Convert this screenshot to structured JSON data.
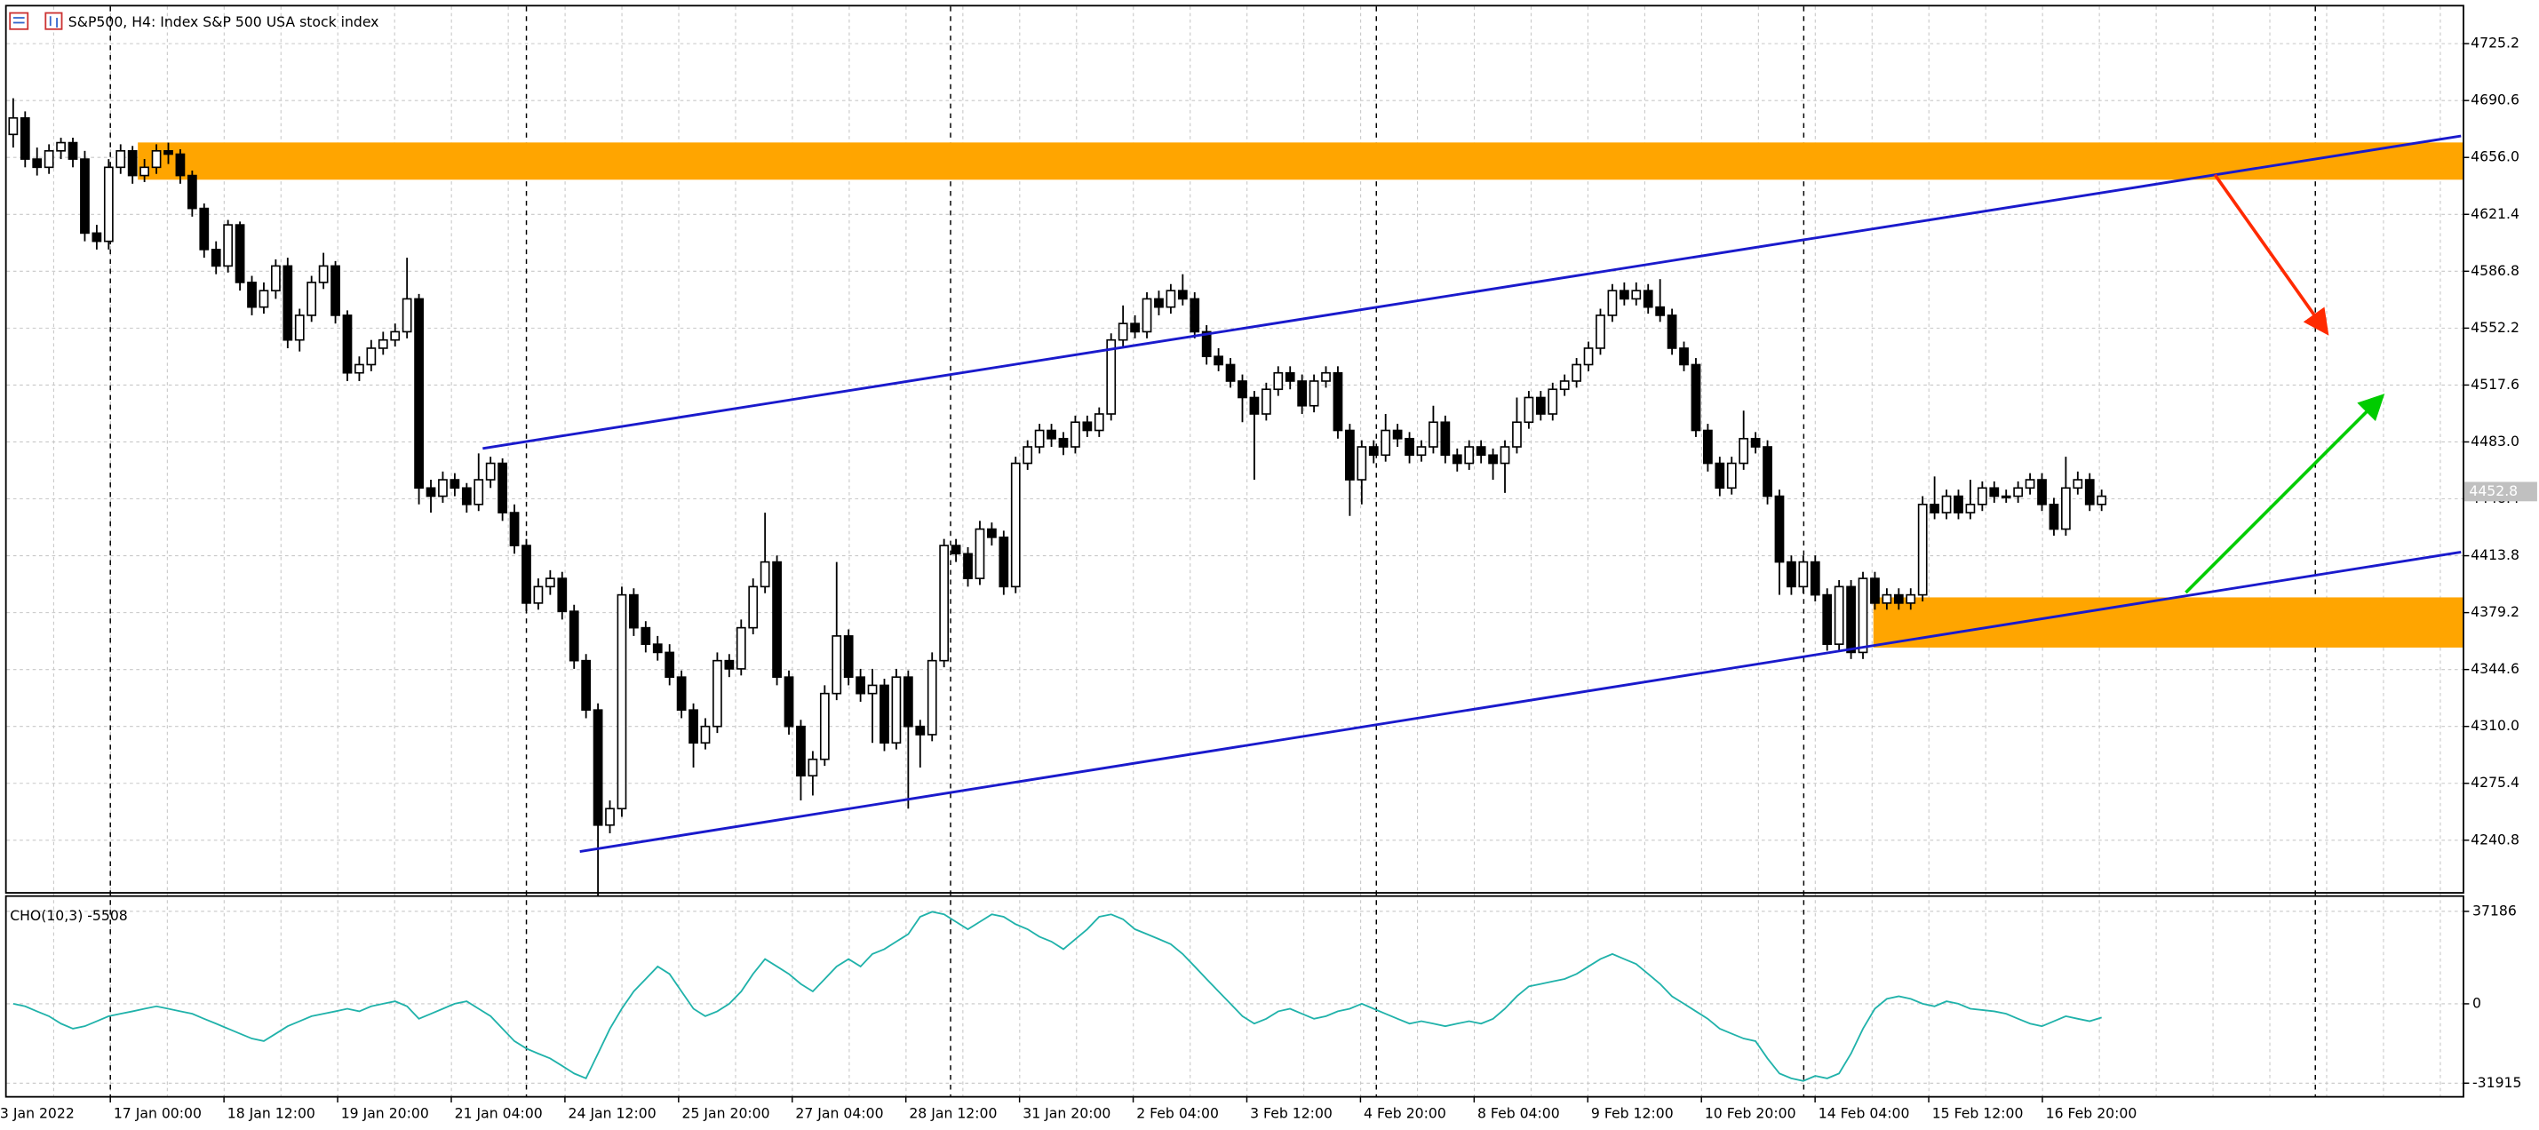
{
  "chart_data": {
    "type": "candlestick",
    "title": "S&P500, H4:  Index S&P 500 USA stock index",
    "ohlc": [
      [
        4670,
        4692,
        4662,
        4680
      ],
      [
        4680,
        4684,
        4650,
        4655
      ],
      [
        4655,
        4662,
        4645,
        4650
      ],
      [
        4650,
        4664,
        4646,
        4660
      ],
      [
        4660,
        4668,
        4655,
        4665
      ],
      [
        4665,
        4668,
        4650,
        4655
      ],
      [
        4655,
        4660,
        4605,
        4610
      ],
      [
        4610,
        4615,
        4600,
        4605
      ],
      [
        4605,
        4655,
        4600,
        4650
      ],
      [
        4650,
        4664,
        4646,
        4660
      ],
      [
        4660,
        4663,
        4640,
        4645
      ],
      [
        4645,
        4655,
        4641,
        4650
      ],
      [
        4650,
        4664,
        4646,
        4660
      ],
      [
        4660,
        4665,
        4652,
        4658
      ],
      [
        4658,
        4661,
        4640,
        4645
      ],
      [
        4645,
        4648,
        4620,
        4625
      ],
      [
        4625,
        4628,
        4595,
        4600
      ],
      [
        4600,
        4605,
        4585,
        4590
      ],
      [
        4590,
        4618,
        4586,
        4615
      ],
      [
        4615,
        4617,
        4575,
        4580
      ],
      [
        4580,
        4584,
        4560,
        4565
      ],
      [
        4565,
        4580,
        4561,
        4575
      ],
      [
        4575,
        4594,
        4570,
        4590
      ],
      [
        4590,
        4595,
        4540,
        4545
      ],
      [
        4545,
        4564,
        4538,
        4560
      ],
      [
        4560,
        4584,
        4556,
        4580
      ],
      [
        4580,
        4598,
        4576,
        4590
      ],
      [
        4590,
        4593,
        4555,
        4560
      ],
      [
        4560,
        4563,
        4520,
        4525
      ],
      [
        4525,
        4535,
        4520,
        4530
      ],
      [
        4530,
        4545,
        4526,
        4540
      ],
      [
        4540,
        4550,
        4536,
        4545
      ],
      [
        4545,
        4555,
        4541,
        4550
      ],
      [
        4550,
        4595,
        4546,
        4570
      ],
      [
        4570,
        4573,
        4445,
        4455
      ],
      [
        4455,
        4460,
        4440,
        4450
      ],
      [
        4450,
        4465,
        4446,
        4460
      ],
      [
        4460,
        4464,
        4450,
        4455
      ],
      [
        4455,
        4458,
        4440,
        4445
      ],
      [
        4445,
        4476,
        4441,
        4460
      ],
      [
        4460,
        4474,
        4455,
        4470
      ],
      [
        4470,
        4473,
        4435,
        4440
      ],
      [
        4440,
        4445,
        4415,
        4420
      ],
      [
        4420,
        4424,
        4380,
        4385
      ],
      [
        4385,
        4400,
        4381,
        4395
      ],
      [
        4395,
        4405,
        4390,
        4400
      ],
      [
        4400,
        4404,
        4375,
        4380
      ],
      [
        4380,
        4384,
        4345,
        4350
      ],
      [
        4350,
        4354,
        4315,
        4320
      ],
      [
        4320,
        4324,
        4207,
        4250
      ],
      [
        4250,
        4265,
        4245,
        4260
      ],
      [
        4260,
        4395,
        4255,
        4390
      ],
      [
        4390,
        4394,
        4365,
        4370
      ],
      [
        4370,
        4374,
        4355,
        4360
      ],
      [
        4360,
        4365,
        4350,
        4355
      ],
      [
        4355,
        4360,
        4335,
        4340
      ],
      [
        4340,
        4344,
        4315,
        4320
      ],
      [
        4320,
        4324,
        4285,
        4300
      ],
      [
        4300,
        4315,
        4296,
        4310
      ],
      [
        4310,
        4355,
        4306,
        4350
      ],
      [
        4350,
        4354,
        4340,
        4345
      ],
      [
        4345,
        4375,
        4341,
        4370
      ],
      [
        4370,
        4400,
        4366,
        4395
      ],
      [
        4395,
        4440,
        4391,
        4410
      ],
      [
        4410,
        4414,
        4335,
        4340
      ],
      [
        4340,
        4344,
        4305,
        4310
      ],
      [
        4310,
        4314,
        4265,
        4280
      ],
      [
        4280,
        4295,
        4268,
        4290
      ],
      [
        4290,
        4335,
        4286,
        4330
      ],
      [
        4330,
        4410,
        4326,
        4365
      ],
      [
        4365,
        4369,
        4335,
        4340
      ],
      [
        4340,
        4345,
        4325,
        4330
      ],
      [
        4330,
        4345,
        4300,
        4335
      ],
      [
        4335,
        4339,
        4295,
        4300
      ],
      [
        4300,
        4345,
        4296,
        4340
      ],
      [
        4340,
        4344,
        4260,
        4310
      ],
      [
        4310,
        4314,
        4285,
        4305
      ],
      [
        4305,
        4355,
        4301,
        4350
      ],
      [
        4350,
        4424,
        4346,
        4420
      ],
      [
        4420,
        4424,
        4410,
        4415
      ],
      [
        4415,
        4419,
        4395,
        4400
      ],
      [
        4400,
        4435,
        4396,
        4430
      ],
      [
        4430,
        4434,
        4420,
        4425
      ],
      [
        4425,
        4429,
        4390,
        4395
      ],
      [
        4395,
        4474,
        4391,
        4470
      ],
      [
        4470,
        4484,
        4466,
        4480
      ],
      [
        4480,
        4494,
        4476,
        4490
      ],
      [
        4490,
        4494,
        4480,
        4485
      ],
      [
        4485,
        4489,
        4475,
        4480
      ],
      [
        4480,
        4499,
        4476,
        4495
      ],
      [
        4495,
        4499,
        4486,
        4490
      ],
      [
        4490,
        4504,
        4486,
        4500
      ],
      [
        4500,
        4549,
        4496,
        4545
      ],
      [
        4545,
        4566,
        4541,
        4555
      ],
      [
        4555,
        4560,
        4546,
        4550
      ],
      [
        4550,
        4574,
        4546,
        4570
      ],
      [
        4570,
        4575,
        4560,
        4565
      ],
      [
        4565,
        4579,
        4561,
        4575
      ],
      [
        4575,
        4585,
        4566,
        4570
      ],
      [
        4570,
        4574,
        4546,
        4550
      ],
      [
        4550,
        4554,
        4530,
        4535
      ],
      [
        4535,
        4540,
        4526,
        4530
      ],
      [
        4530,
        4534,
        4516,
        4520
      ],
      [
        4520,
        4524,
        4495,
        4510
      ],
      [
        4510,
        4514,
        4460,
        4500
      ],
      [
        4500,
        4519,
        4496,
        4515
      ],
      [
        4515,
        4529,
        4511,
        4525
      ],
      [
        4525,
        4529,
        4515,
        4520
      ],
      [
        4520,
        4524,
        4500,
        4505
      ],
      [
        4505,
        4524,
        4501,
        4520
      ],
      [
        4520,
        4529,
        4516,
        4525
      ],
      [
        4525,
        4529,
        4485,
        4490
      ],
      [
        4490,
        4494,
        4438,
        4460
      ],
      [
        4460,
        4484,
        4445,
        4480
      ],
      [
        4480,
        4484,
        4470,
        4475
      ],
      [
        4475,
        4500,
        4471,
        4490
      ],
      [
        4490,
        4494,
        4480,
        4485
      ],
      [
        4485,
        4489,
        4470,
        4475
      ],
      [
        4475,
        4484,
        4471,
        4480
      ],
      [
        4480,
        4505,
        4476,
        4495
      ],
      [
        4495,
        4499,
        4470,
        4475
      ],
      [
        4475,
        4479,
        4465,
        4470
      ],
      [
        4470,
        4484,
        4466,
        4480
      ],
      [
        4480,
        4484,
        4470,
        4475
      ],
      [
        4475,
        4479,
        4460,
        4470
      ],
      [
        4470,
        4484,
        4452,
        4480
      ],
      [
        4480,
        4510,
        4476,
        4495
      ],
      [
        4495,
        4514,
        4491,
        4510
      ],
      [
        4510,
        4514,
        4496,
        4500
      ],
      [
        4500,
        4519,
        4496,
        4515
      ],
      [
        4515,
        4524,
        4511,
        4520
      ],
      [
        4520,
        4534,
        4516,
        4530
      ],
      [
        4530,
        4544,
        4526,
        4540
      ],
      [
        4540,
        4564,
        4536,
        4560
      ],
      [
        4560,
        4579,
        4556,
        4575
      ],
      [
        4575,
        4580,
        4566,
        4570
      ],
      [
        4570,
        4580,
        4566,
        4575
      ],
      [
        4575,
        4579,
        4561,
        4565
      ],
      [
        4565,
        4582,
        4556,
        4560
      ],
      [
        4560,
        4564,
        4536,
        4540
      ],
      [
        4540,
        4544,
        4526,
        4530
      ],
      [
        4530,
        4534,
        4486,
        4490
      ],
      [
        4490,
        4494,
        4465,
        4470
      ],
      [
        4470,
        4474,
        4450,
        4455
      ],
      [
        4455,
        4474,
        4451,
        4470
      ],
      [
        4470,
        4502,
        4466,
        4485
      ],
      [
        4485,
        4489,
        4476,
        4480
      ],
      [
        4480,
        4484,
        4445,
        4450
      ],
      [
        4450,
        4454,
        4390,
        4410
      ],
      [
        4410,
        4414,
        4390,
        4395
      ],
      [
        4395,
        4414,
        4391,
        4410
      ],
      [
        4410,
        4414,
        4386,
        4390
      ],
      [
        4390,
        4394,
        4356,
        4360
      ],
      [
        4360,
        4399,
        4356,
        4395
      ],
      [
        4395,
        4399,
        4351,
        4355
      ],
      [
        4355,
        4404,
        4351,
        4400
      ],
      [
        4400,
        4404,
        4381,
        4385
      ],
      [
        4385,
        4394,
        4381,
        4390
      ],
      [
        4390,
        4394,
        4381,
        4385
      ],
      [
        4385,
        4394,
        4381,
        4390
      ],
      [
        4390,
        4450,
        4386,
        4445
      ],
      [
        4445,
        4462,
        4436,
        4440
      ],
      [
        4440,
        4454,
        4436,
        4450
      ],
      [
        4450,
        4454,
        4436,
        4440
      ],
      [
        4440,
        4460,
        4436,
        4445
      ],
      [
        4445,
        4459,
        4441,
        4455
      ],
      [
        4455,
        4459,
        4446,
        4450
      ],
      [
        4450,
        4454,
        4446,
        4450
      ],
      [
        4450,
        4459,
        4446,
        4455
      ],
      [
        4455,
        4464,
        4451,
        4460
      ],
      [
        4460,
        4464,
        4441,
        4445
      ],
      [
        4445,
        4449,
        4426,
        4430
      ],
      [
        4430,
        4474,
        4426,
        4455
      ],
      [
        4455,
        4465,
        4451,
        4460
      ],
      [
        4460,
        4464,
        4441,
        4445
      ],
      [
        4445,
        4454,
        4441,
        4450
      ]
    ],
    "ylim": [
      4209.3,
      4747.8
    ],
    "yticks": [
      4725.2,
      4690.6,
      {
        "value": 4656.0,
        "label": "4656.0"
      },
      4621.4,
      4586.8,
      4552.2,
      4517.6,
      {
        "value": 4483.0,
        "label": "4483.0"
      },
      4448.4,
      4413.8,
      4379.2,
      4344.6,
      {
        "value": 4310.0,
        "label": "4310.0"
      },
      4275.4,
      4240.8
    ],
    "grid": true,
    "price_tag": 4452.8,
    "x_labels": [
      "3 Jan 2022",
      "17 Jan 00:00",
      "18 Jan 12:00",
      "19 Jan 20:00",
      "21 Jan 04:00",
      "24 Jan 12:00",
      "25 Jan 20:00",
      "27 Jan 04:00",
      "28 Jan 12:00",
      "31 Jan 20:00",
      "2 Feb 04:00",
      "3 Feb 12:00",
      "4 Feb 20:00",
      "8 Feb 04:00",
      "9 Feb 12:00",
      "10 Feb 20:00",
      "14 Feb 04:00",
      "15 Feb 12:00",
      "16 Feb 20:00"
    ],
    "indicator": {
      "title": "CHO(10,3) -5508",
      "color": "#20b2aa",
      "values": [
        0,
        -1000,
        -3000,
        -5000,
        -8000,
        -10000,
        -9000,
        -7000,
        -5000,
        -4000,
        -3000,
        -2000,
        -1000,
        -2000,
        -3000,
        -4000,
        -6000,
        -8000,
        -10000,
        -12000,
        -14000,
        -15000,
        -12000,
        -9000,
        -7000,
        -5000,
        -4000,
        -3000,
        -2000,
        -3000,
        -1000,
        0,
        1000,
        -1000,
        -6000,
        -4000,
        -2000,
        0,
        1000,
        -2000,
        -5000,
        -10000,
        -15000,
        -18000,
        -20000,
        -22000,
        -25000,
        -28000,
        -30000,
        -20000,
        -10000,
        -2000,
        5000,
        10000,
        15000,
        12000,
        5000,
        -2000,
        -5000,
        -3000,
        0,
        5000,
        12000,
        18000,
        15000,
        12000,
        8000,
        5000,
        10000,
        15000,
        18000,
        15000,
        20000,
        22000,
        25000,
        28000,
        35000,
        37000,
        36000,
        33000,
        30000,
        33000,
        36000,
        35000,
        32000,
        30000,
        27000,
        25000,
        22000,
        26000,
        30000,
        35000,
        36000,
        34000,
        30000,
        28000,
        26000,
        24000,
        20000,
        15000,
        10000,
        5000,
        0,
        -5000,
        -8000,
        -6000,
        -3000,
        -2000,
        -4000,
        -6000,
        -5000,
        -3000,
        -2000,
        0,
        -2000,
        -4000,
        -6000,
        -8000,
        -7000,
        -8000,
        -9000,
        -8000,
        -7000,
        -8000,
        -6000,
        -2000,
        3000,
        7000,
        8000,
        9000,
        10000,
        12000,
        15000,
        18000,
        20000,
        18000,
        16000,
        12000,
        8000,
        3000,
        0,
        -3000,
        -6000,
        -10000,
        -12000,
        -14000,
        -15000,
        -22000,
        -28000,
        -30000,
        -31000,
        -29000,
        -30000,
        -28000,
        -20000,
        -10000,
        -2000,
        2000,
        3000,
        2000,
        0,
        -1000,
        1000,
        0,
        -2000,
        -2500,
        -3000,
        -4000,
        -6000,
        -8000,
        -9000,
        -7000,
        -5000,
        -6000,
        -7000,
        -5508
      ],
      "ylim": [
        -37080,
        43000
      ],
      "yticks": [
        37186,
        0,
        -31915
      ]
    }
  }
}
